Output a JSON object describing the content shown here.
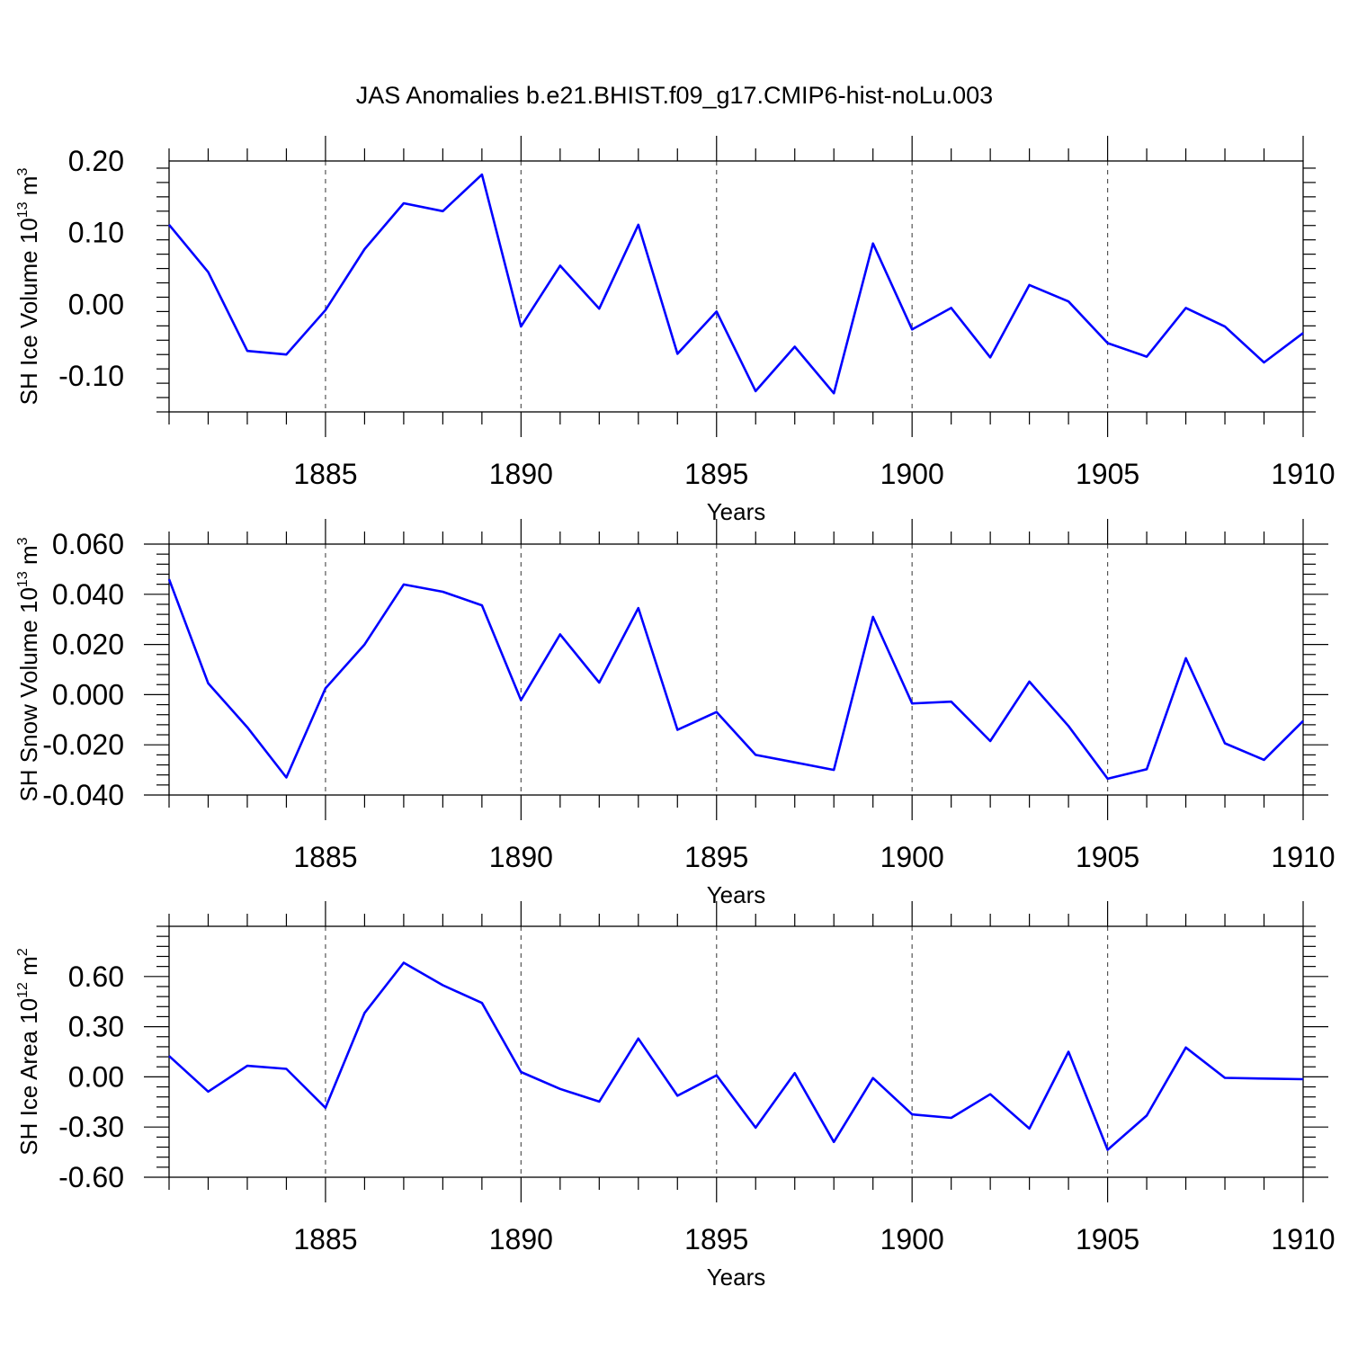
{
  "title": "JAS Anomalies b.e21.BHIST.f09_g17.CMIP6-hist-noLu.003",
  "colors": {
    "series": "#0000ff",
    "axes": "#000000",
    "grid": "#555555"
  },
  "chart_data": [
    {
      "type": "line",
      "ylabel_main": "SH Ice Volume 10",
      "ylabel_exp": "13",
      "ylabel_unit": " m",
      "ylabel_unit_exp": "3",
      "xlabel": "Years",
      "xlim": [
        1881,
        1910
      ],
      "ylim": [
        -0.15,
        0.2
      ],
      "x_ticks": [
        1885,
        1890,
        1895,
        1900,
        1905,
        1910
      ],
      "y_ticks": [
        -0.1,
        0.0,
        0.1,
        0.2
      ],
      "y_tick_labels": [
        "-0.10",
        "0.00",
        "0.10",
        "0.20"
      ],
      "grid": "vertical dashed at major x ticks",
      "x": [
        1881,
        1882,
        1883,
        1884,
        1885,
        1886,
        1887,
        1888,
        1889,
        1890,
        1891,
        1892,
        1893,
        1894,
        1895,
        1896,
        1897,
        1898,
        1899,
        1900,
        1901,
        1902,
        1903,
        1904,
        1905,
        1906,
        1907,
        1908,
        1909,
        1910
      ],
      "values": [
        0.111,
        0.045,
        -0.065,
        -0.07,
        -0.008,
        0.077,
        0.141,
        0.13,
        0.181,
        -0.031,
        0.054,
        -0.006,
        0.111,
        -0.069,
        -0.01,
        -0.121,
        -0.059,
        -0.124,
        0.085,
        -0.035,
        -0.005,
        -0.074,
        0.027,
        0.004,
        -0.054,
        -0.073,
        -0.005,
        -0.031,
        -0.081,
        -0.04
      ]
    },
    {
      "type": "line",
      "ylabel_main": "SH Snow Volume 10",
      "ylabel_exp": "13",
      "ylabel_unit": " m",
      "ylabel_unit_exp": "3",
      "xlabel": "Years",
      "xlim": [
        1881,
        1910
      ],
      "ylim": [
        -0.04,
        0.06
      ],
      "x_ticks": [
        1885,
        1890,
        1895,
        1900,
        1905,
        1910
      ],
      "y_ticks": [
        -0.04,
        -0.02,
        0.0,
        0.02,
        0.04,
        0.06
      ],
      "y_tick_labels": [
        "-0.040",
        "-0.020",
        "0.000",
        "0.020",
        "0.040",
        "0.060"
      ],
      "grid": "vertical dashed at major x ticks",
      "x": [
        1881,
        1882,
        1883,
        1884,
        1885,
        1886,
        1887,
        1888,
        1889,
        1890,
        1891,
        1892,
        1893,
        1894,
        1895,
        1896,
        1897,
        1898,
        1899,
        1900,
        1901,
        1902,
        1903,
        1904,
        1905,
        1906,
        1907,
        1908,
        1909,
        1910
      ],
      "values": [
        0.046,
        0.0045,
        -0.013,
        -0.033,
        0.0025,
        0.02,
        0.0439,
        0.041,
        0.0356,
        -0.0022,
        0.024,
        0.0048,
        0.0345,
        -0.014,
        -0.0069,
        -0.024,
        -0.027,
        -0.03,
        0.031,
        -0.0035,
        -0.0028,
        -0.0185,
        0.0052,
        -0.0125,
        -0.0335,
        -0.0297,
        0.0145,
        -0.0194,
        -0.026,
        -0.0105
      ]
    },
    {
      "type": "line",
      "ylabel_main": "SH Ice Area 10",
      "ylabel_exp": "12",
      "ylabel_unit": " m",
      "ylabel_unit_exp": "2",
      "xlabel": "Years",
      "xlim": [
        1881,
        1910
      ],
      "ylim": [
        -0.6,
        0.9
      ],
      "x_ticks": [
        1885,
        1890,
        1895,
        1900,
        1905,
        1910
      ],
      "y_ticks": [
        -0.6,
        -0.3,
        0.0,
        0.3,
        0.6
      ],
      "y_tick_labels": [
        "-0.60",
        "-0.30",
        "0.00",
        "0.30",
        "0.60"
      ],
      "grid": "vertical dashed at major x ticks",
      "x": [
        1881,
        1882,
        1883,
        1884,
        1885,
        1886,
        1887,
        1888,
        1889,
        1890,
        1891,
        1892,
        1893,
        1894,
        1895,
        1896,
        1897,
        1898,
        1899,
        1900,
        1901,
        1902,
        1903,
        1904,
        1905,
        1906,
        1907,
        1908,
        1909,
        1910
      ],
      "values": [
        0.125,
        -0.088,
        0.066,
        0.048,
        -0.185,
        0.382,
        0.682,
        0.548,
        0.442,
        0.029,
        -0.072,
        -0.148,
        0.229,
        -0.113,
        0.009,
        -0.304,
        0.022,
        -0.389,
        -0.007,
        -0.224,
        -0.245,
        -0.104,
        -0.309,
        0.15,
        -0.436,
        -0.231,
        0.175,
        -0.006,
        -0.01,
        -0.014
      ]
    }
  ]
}
